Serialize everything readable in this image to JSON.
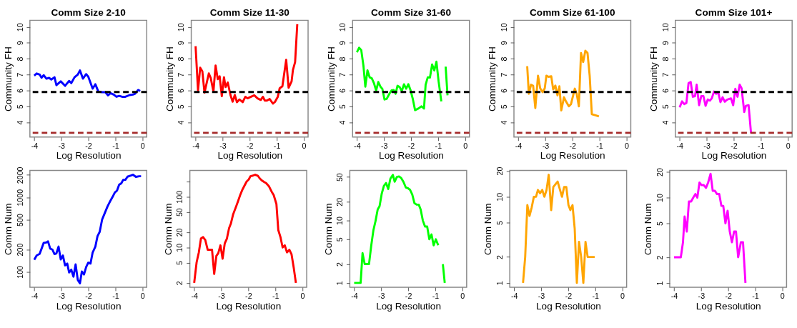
{
  "chart_data": [
    {
      "type": "line",
      "title": "Comm Size 2-10",
      "xlabel": "Log Resolution",
      "ylabel": "Community FH",
      "xlim": [
        -4.16,
        0.16
      ],
      "xticks": [
        -4,
        -3,
        -2,
        -1,
        0
      ],
      "ylim": [
        3.06,
        10.42
      ],
      "yticks": [
        4,
        5,
        6,
        7,
        8,
        9,
        10
      ],
      "ref_lines": [
        {
          "axis": "y",
          "value": 5.9,
          "color": "#000000",
          "line_style": "dashed"
        },
        {
          "axis": "y",
          "value": 3.33,
          "color": "#a52a2a",
          "line_style": "dashed"
        }
      ],
      "series": [
        {
          "color": "#0000ff",
          "x": [
            -4,
            -3.91,
            -3.8,
            -3.73,
            -3.65,
            -3.55,
            -3.45,
            -3.37,
            -3.25,
            -3.18,
            -3.02,
            -2.86,
            -2.71,
            -2.63,
            -2.51,
            -2.39,
            -2.31,
            -2.2,
            -2.08,
            -2.0,
            -1.84,
            -1.74,
            -1.63,
            -1.49,
            -1.37,
            -1.27,
            -1.18,
            -1.06,
            -0.96,
            -0.86,
            -0.75,
            -0.63,
            -0.47,
            -0.35,
            -0.27,
            -0.16,
            -0.08
          ],
          "values": [
            6.93,
            7.07,
            7.0,
            6.8,
            6.96,
            6.74,
            6.79,
            6.69,
            6.83,
            6.33,
            6.57,
            6.29,
            6.6,
            6.46,
            6.83,
            7.0,
            7.26,
            6.74,
            7.03,
            6.86,
            6.11,
            6.39,
            5.93,
            5.89,
            5.89,
            5.69,
            5.83,
            5.74,
            5.6,
            5.66,
            5.6,
            5.6,
            5.71,
            5.74,
            5.79,
            6.03,
            5.97
          ]
        }
      ]
    },
    {
      "type": "line",
      "title": "Comm Size 11-30",
      "xlabel": "Log Resolution",
      "ylabel": "Community FH",
      "xlim": [
        -4.16,
        0.16
      ],
      "xticks": [
        -4,
        -3,
        -2,
        -1,
        0
      ],
      "ylim": [
        3.06,
        10.42
      ],
      "yticks": [
        4,
        5,
        6,
        7,
        8,
        9,
        10
      ],
      "ref_lines": [
        {
          "axis": "y",
          "value": 5.9,
          "color": "#000000",
          "line_style": "dashed"
        },
        {
          "axis": "y",
          "value": 3.33,
          "color": "#a52a2a",
          "line_style": "dashed"
        }
      ],
      "series": [
        {
          "color": "#ff0000",
          "x": [
            -4,
            -3.91,
            -3.83,
            -3.75,
            -3.67,
            -3.51,
            -3.44,
            -3.34,
            -3.26,
            -3.18,
            -3.11,
            -3.03,
            -2.95,
            -2.89,
            -2.81,
            -2.71,
            -2.63,
            -2.55,
            -2.47,
            -2.38,
            -2.26,
            -2.16,
            -2.08,
            -1.95,
            -1.83,
            -1.71,
            -1.59,
            -1.51,
            -1.44,
            -1.36,
            -1.26,
            -1.14,
            -1.06,
            -0.96,
            -0.89,
            -0.79,
            -0.65,
            -0.56,
            -0.45,
            -0.4,
            -0.32,
            -0.24
          ],
          "values": [
            8.79,
            6.0,
            7.43,
            7.21,
            5.86,
            7.07,
            6.79,
            5.93,
            7.57,
            6.71,
            6.89,
            5.64,
            6.83,
            6.21,
            6.5,
            5.71,
            5.29,
            5.71,
            5.26,
            5.43,
            5.26,
            5.6,
            5.5,
            5.6,
            5.69,
            5.5,
            5.4,
            5.6,
            5.36,
            5.36,
            5.46,
            5.17,
            5.29,
            5.6,
            6.14,
            6.26,
            7.93,
            6.17,
            6.57,
            7.29,
            7.79,
            10.17
          ]
        }
      ]
    },
    {
      "type": "line",
      "title": "Comm Size 31-60",
      "xlabel": "Log Resolution",
      "ylabel": "Community FH",
      "xlim": [
        -4.16,
        0.16
      ],
      "xticks": [
        -4,
        -3,
        -2,
        -1,
        0
      ],
      "ylim": [
        3.06,
        10.42
      ],
      "yticks": [
        4,
        5,
        6,
        7,
        8,
        9,
        10
      ],
      "ref_lines": [
        {
          "axis": "y",
          "value": 5.9,
          "color": "#000000",
          "line_style": "dashed"
        },
        {
          "axis": "y",
          "value": 3.33,
          "color": "#a52a2a",
          "line_style": "dashed"
        }
      ],
      "series": [
        {
          "color": "#00ff00",
          "x": [
            -4,
            -3.92,
            -3.84,
            -3.76,
            -3.69,
            -3.61,
            -3.53,
            -3.45,
            -3.37,
            -3.29,
            -3.21,
            -3.13,
            -3.06,
            -2.98,
            -2.9,
            -2.8,
            -2.72,
            -2.64,
            -2.57,
            -2.5,
            -2.42,
            -2.34,
            -2.26,
            -2.18,
            -2.1,
            -2.02,
            -1.93,
            -1.85,
            -1.73,
            -1.61,
            -1.52,
            -1.46,
            -1.38,
            -1.3,
            -1.22,
            -1.14,
            -1.06,
            -0.98,
            -0.88,
            -0.8,
            -0.72,
            -0.65
          ],
          "values": [
            8.4,
            8.69,
            8.54,
            7.57,
            6.24,
            7.26,
            6.83,
            6.76,
            6.46,
            6.0,
            6.53,
            6.24,
            6.1,
            5.43,
            5.47,
            5.79,
            6.0,
            6.03,
            5.79,
            6.29,
            6.21,
            5.96,
            6.39,
            6.11,
            6.39,
            6.03,
            5.43,
            4.76,
            4.86,
            5.0,
            4.86,
            6.36,
            6.83,
            6.81,
            7.64,
            7.26,
            7.81,
            6.57,
            5.31,
            null,
            7.5,
            5.69
          ]
        }
      ]
    },
    {
      "type": "line",
      "title": "Comm Size 61-100",
      "xlabel": "Log Resolution",
      "ylabel": "Community FH",
      "xlim": [
        -4.16,
        0.16
      ],
      "xticks": [
        -4,
        -3,
        -2,
        -1,
        0
      ],
      "ylim": [
        3.06,
        10.42
      ],
      "yticks": [
        4,
        5,
        6,
        7,
        8,
        9,
        10
      ],
      "ref_lines": [
        {
          "axis": "y",
          "value": 5.9,
          "color": "#000000",
          "line_style": "dashed"
        },
        {
          "axis": "y",
          "value": 3.33,
          "color": "#a52a2a",
          "line_style": "dashed"
        }
      ],
      "series": [
        {
          "color": "#ffa500",
          "x": [
            -3.67,
            -3.61,
            -3.53,
            -3.45,
            -3.37,
            -3.27,
            -3.19,
            -3.1,
            -3.02,
            -2.96,
            -2.88,
            -2.78,
            -2.71,
            -2.63,
            -2.55,
            -2.48,
            -2.41,
            -2.31,
            -2.23,
            -2.13,
            -2.05,
            -1.97,
            -1.91,
            -1.84,
            -1.76,
            -1.68,
            -1.6,
            -1.52,
            -1.44,
            -1.36,
            -1.28,
            -1.14,
            -1.02
          ],
          "values": [
            7.53,
            5.79,
            6.36,
            6.29,
            4.89,
            6.93,
            6.14,
            5.89,
            6.14,
            6.93,
            6.86,
            6.89,
            6.07,
            6.31,
            5.69,
            6.26,
            4.74,
            5.57,
            5.29,
            5.0,
            5.14,
            5.69,
            6.11,
            5.79,
            5.0,
            8.36,
            7.79,
            8.5,
            8.36,
            6.93,
            4.5,
            4.43,
            4.36
          ]
        }
      ]
    },
    {
      "type": "line",
      "title": "Comm Size 101+",
      "xlabel": "Log Resolution",
      "ylabel": "Community FH",
      "xlim": [
        -4.16,
        0.16
      ],
      "xticks": [
        -4,
        -3,
        -2,
        -1,
        0
      ],
      "ylim": [
        3.06,
        10.42
      ],
      "yticks": [
        4,
        5,
        6,
        7,
        8,
        9,
        10
      ],
      "ref_lines": [
        {
          "axis": "y",
          "value": 5.9,
          "color": "#000000",
          "line_style": "dashed"
        },
        {
          "axis": "y",
          "value": 3.33,
          "color": "#a52a2a",
          "line_style": "dashed"
        }
      ],
      "series": [
        {
          "color": "#ff00ff",
          "x": [
            -4,
            -3.91,
            -3.83,
            -3.75,
            -3.67,
            -3.59,
            -3.51,
            -3.43,
            -3.37,
            -3.28,
            -3.2,
            -3.12,
            -3.04,
            -2.96,
            -2.88,
            -2.81,
            -2.73,
            -2.65,
            -2.57,
            -2.49,
            -2.41,
            -2.33,
            -2.26,
            -2.18,
            -2.1,
            -2.02,
            -1.94,
            -1.86,
            -1.78,
            -1.71,
            -1.61,
            -1.55,
            -1.45,
            -1.36
          ],
          "values": [
            4.93,
            5.31,
            5.14,
            5.21,
            6.46,
            6.53,
            5.6,
            5.64,
            6.36,
            5.07,
            5.64,
            5.64,
            5.03,
            5.43,
            5.36,
            5.5,
            5.93,
            5.79,
            5.86,
            5.26,
            5.57,
            5.29,
            5.4,
            5.46,
            5.5,
            5.07,
            6.1,
            5.6,
            6.36,
            6.14,
            4.64,
            5.03,
            5.07,
            3.31
          ]
        }
      ]
    },
    {
      "type": "line",
      "xlabel": "Log Resolution",
      "ylabel": "Comm Num",
      "log": true,
      "xlim": [
        -4.16,
        0.16
      ],
      "xticks": [
        -4,
        -3,
        -2,
        -1,
        0
      ],
      "ylim": [
        62,
        2300
      ],
      "yticks": [
        100,
        200,
        500,
        1000,
        2000
      ],
      "series": [
        {
          "color": "#0000ff",
          "x": [
            -4,
            -3.91,
            -3.8,
            -3.73,
            -3.65,
            -3.55,
            -3.49,
            -3.41,
            -3.33,
            -3.25,
            -3.18,
            -3.1,
            -3.02,
            -2.94,
            -2.86,
            -2.78,
            -2.71,
            -2.63,
            -2.55,
            -2.47,
            -2.39,
            -2.31,
            -2.24,
            -2.16,
            -2.08,
            -2.0,
            -1.92,
            -1.84,
            -1.74,
            -1.66,
            -1.58,
            -1.49,
            -1.41,
            -1.29,
            -1.18,
            -1.1,
            -1.02,
            -0.94,
            -0.86,
            -0.78,
            -0.71,
            -0.63,
            -0.55,
            -0.43,
            -0.35,
            -0.24,
            -0.12,
            -0.05
          ],
          "values": [
            145,
            166,
            174,
            204,
            245,
            248,
            256,
            205,
            199,
            173,
            177,
            218,
            147,
            166,
            122,
            129,
            98,
            107,
            86,
            126,
            78,
            70,
            101,
            92,
            116,
            133,
            129,
            182,
            218,
            302,
            344,
            503,
            593,
            755,
            906,
            1020,
            1162,
            1233,
            1480,
            1548,
            1722,
            1722,
            1897,
            1962,
            2015,
            1888,
            1924,
            1924
          ]
        }
      ]
    },
    {
      "type": "line",
      "xlabel": "Log Resolution",
      "ylabel": "Comm Num",
      "log": true,
      "xlim": [
        -4.16,
        0.16
      ],
      "xticks": [
        -4,
        -3,
        -2,
        -1,
        0
      ],
      "ylim": [
        1.64,
        330
      ],
      "yticks": [
        2,
        5,
        10,
        20,
        50,
        100,
        {
          "value": 200,
          "label": null
        }
      ],
      "series": [
        {
          "color": "#ff0000",
          "x": [
            -4,
            -3.91,
            -3.83,
            -3.75,
            -3.67,
            -3.59,
            -3.5,
            -3.4,
            -3.34,
            -3.26,
            -3.18,
            -3.11,
            -3.03,
            -2.95,
            -2.87,
            -2.79,
            -2.71,
            -2.64,
            -2.56,
            -2.45,
            -2.38,
            -2.3,
            -2.22,
            -2.14,
            -2.06,
            -1.98,
            -1.92,
            -1.83,
            -1.75,
            -1.65,
            -1.58,
            -1.5,
            -1.42,
            -1.34,
            -1.24,
            -1.14,
            -1.06,
            -0.96,
            -0.89,
            -0.81,
            -0.73,
            -0.65,
            -0.57,
            -0.48,
            -0.4,
            -0.32,
            -0.24
          ],
          "values": [
            2,
            5.1,
            7.9,
            15,
            16,
            14,
            9,
            9,
            9,
            3,
            6.8,
            7.7,
            11,
            6,
            12,
            15,
            24,
            30,
            45,
            64,
            81,
            108,
            137,
            166,
            200,
            220,
            254,
            261,
            272,
            261,
            231,
            210,
            197,
            186,
            162,
            127,
            108,
            72,
            22,
            16,
            10,
            11,
            8,
            9,
            7.3,
            4,
            2
          ]
        }
      ]
    },
    {
      "type": "line",
      "xlabel": "Log Resolution",
      "ylabel": "Comm Num",
      "log": true,
      "xlim": [
        -4.16,
        0.16
      ],
      "xticks": [
        -4,
        -3,
        -2,
        -1,
        0
      ],
      "ylim": [
        0.85,
        63.6
      ],
      "yticks": [
        1,
        2,
        5,
        10,
        20,
        50
      ],
      "series": [
        {
          "color": "#00ff00",
          "x": [
            -4,
            -3.76,
            -3.69,
            -3.61,
            -3.45,
            -3.37,
            -3.29,
            -3.21,
            -3.13,
            -3.06,
            -2.98,
            -2.9,
            -2.82,
            -2.74,
            -2.66,
            -2.57,
            -2.5,
            -2.42,
            -2.34,
            -2.26,
            -2.18,
            -2.09,
            -2.01,
            -1.93,
            -1.85,
            -1.77,
            -1.69,
            -1.61,
            -1.54,
            -1.46,
            -1.38,
            -1.3,
            -1.22,
            -1.14,
            -1.06,
            -0.98,
            -0.89,
            -0.81,
            -0.72,
            -0.65
          ],
          "values": [
            1,
            1,
            3,
            2,
            2,
            3.9,
            6.9,
            9.8,
            15,
            17,
            27,
            36,
            40,
            32,
            47,
            54,
            42,
            50,
            51,
            48,
            42,
            34,
            33,
            31,
            26,
            19,
            18,
            18,
            15,
            10,
            8,
            8,
            5,
            6,
            4,
            5,
            4,
            null,
            2,
            1
          ]
        }
      ]
    },
    {
      "type": "line",
      "xlabel": "Log Resolution",
      "ylabel": "Comm Num",
      "log": true,
      "xlim": [
        -4.16,
        0.16
      ],
      "xticks": [
        -4,
        -3,
        -2,
        -1,
        0
      ],
      "ylim": [
        0.89,
        20.2
      ],
      "yticks": [
        1,
        2,
        5,
        10,
        20
      ],
      "series": [
        {
          "color": "#ffa500",
          "x": [
            -3.67,
            -3.59,
            -3.51,
            -3.43,
            -3.35,
            -3.27,
            -3.19,
            -3.12,
            -3.04,
            -2.96,
            -2.88,
            -2.8,
            -2.72,
            -2.63,
            -2.55,
            -2.39,
            -2.23,
            -2.15,
            -2.07,
            -1.99,
            -1.92,
            -1.84,
            -1.76,
            -1.68,
            -1.6,
            -1.52,
            -1.44,
            -1.36,
            -1.28,
            -1.02
          ],
          "values": [
            1,
            2,
            8,
            6,
            7.5,
            10,
            10,
            12,
            11,
            12,
            10,
            12,
            18,
            7,
            13,
            15,
            10,
            13,
            13,
            8,
            7,
            8,
            4.3,
            1,
            3,
            2,
            1,
            3,
            2,
            2
          ]
        }
      ]
    },
    {
      "type": "line",
      "xlabel": "Log Resolution",
      "ylabel": "Comm Num",
      "log": true,
      "xlim": [
        -4.16,
        0.16
      ],
      "xticks": [
        -4,
        -3,
        -2,
        -1,
        0
      ],
      "ylim": [
        0.89,
        20.8
      ],
      "yticks": [
        1,
        2,
        5,
        10,
        20
      ],
      "series": [
        {
          "color": "#ff00ff",
          "x": [
            -4,
            -3.75,
            -3.67,
            -3.61,
            -3.53,
            -3.45,
            -3.37,
            -3.29,
            -3.21,
            -3.14,
            -3.06,
            -2.98,
            -2.9,
            -2.82,
            -2.74,
            -2.65,
            -2.57,
            -2.49,
            -2.41,
            -2.33,
            -2.25,
            -2.18,
            -2.1,
            -2.02,
            -1.94,
            -1.86,
            -1.78,
            -1.71,
            -1.63,
            -1.53,
            -1.45,
            -1.36
          ],
          "values": [
            2,
            2,
            3,
            6,
            4,
            9,
            9,
            10,
            11,
            10,
            15,
            14,
            14,
            13,
            15,
            19,
            12,
            12,
            11,
            11,
            8,
            8,
            5,
            7,
            4,
            3,
            4,
            4,
            2,
            3,
            3,
            1
          ]
        }
      ]
    }
  ]
}
